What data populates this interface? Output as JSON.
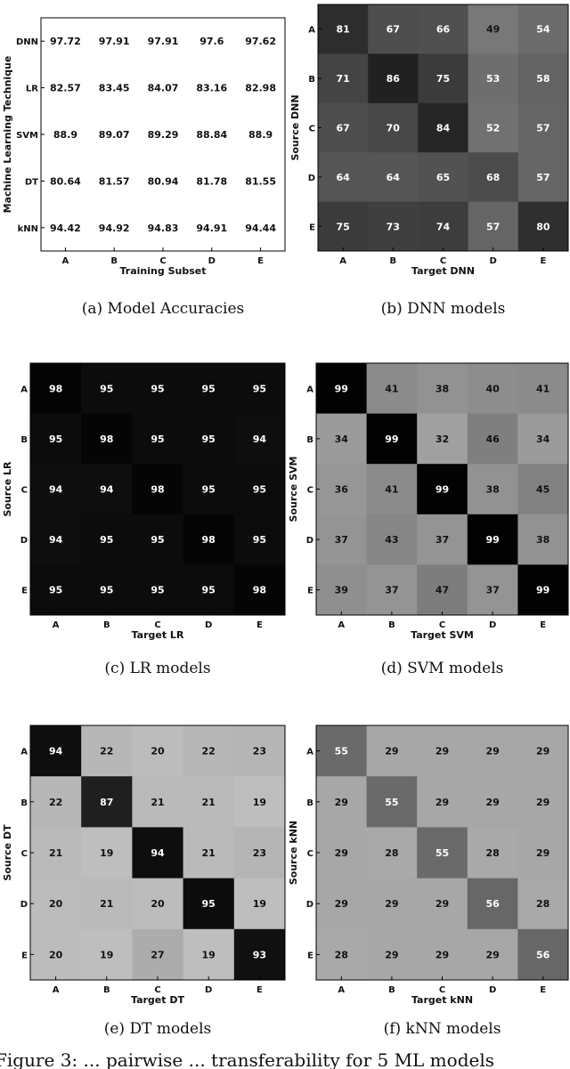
{
  "panels": [
    {
      "id": "a",
      "caption": "(a) Model Accuracies",
      "chart_data": {
        "type": "table",
        "xlabel": "Training Subset",
        "ylabel": "Machine Learning Technique",
        "categories": [
          "A",
          "B",
          "C",
          "D",
          "E"
        ],
        "rows": [
          "DNN",
          "LR",
          "SVM",
          "DT",
          "kNN"
        ],
        "cells": [
          [
            "97.72",
            "97.91",
            "97.91",
            "97.6",
            "97.62"
          ],
          [
            "82.57",
            "83.45",
            "84.07",
            "83.16",
            "82.98"
          ],
          [
            "88.9",
            "89.07",
            "89.29",
            "88.84",
            "88.9"
          ],
          [
            "80.64",
            "81.57",
            "80.94",
            "81.78",
            "81.55"
          ],
          [
            "94.42",
            "94.92",
            "94.83",
            "94.91",
            "94.44"
          ]
        ]
      }
    },
    {
      "id": "b",
      "caption": "(b) DNN models",
      "chart_data": {
        "type": "heatmap",
        "xlabel": "Target DNN",
        "ylabel": "Source DNN",
        "x": [
          "A",
          "B",
          "C",
          "D",
          "E"
        ],
        "y": [
          "A",
          "B",
          "C",
          "D",
          "E"
        ],
        "values": [
          [
            81,
            67,
            66,
            49,
            54
          ],
          [
            71,
            86,
            75,
            53,
            58
          ],
          [
            67,
            70,
            84,
            52,
            57
          ],
          [
            64,
            64,
            65,
            68,
            57
          ],
          [
            75,
            73,
            74,
            57,
            80
          ]
        ],
        "colormap": "grayscale-reversed",
        "vrange": [
          0,
          100
        ]
      }
    },
    {
      "id": "c",
      "caption": "(c) LR models",
      "chart_data": {
        "type": "heatmap",
        "xlabel": "Target LR",
        "ylabel": "Source LR",
        "x": [
          "A",
          "B",
          "C",
          "D",
          "E"
        ],
        "y": [
          "A",
          "B",
          "C",
          "D",
          "E"
        ],
        "values": [
          [
            98,
            95,
            95,
            95,
            95
          ],
          [
            95,
            98,
            95,
            95,
            94
          ],
          [
            94,
            94,
            98,
            95,
            95
          ],
          [
            94,
            95,
            95,
            98,
            95
          ],
          [
            95,
            95,
            95,
            95,
            98
          ]
        ],
        "colormap": "grayscale-reversed",
        "vrange": [
          0,
          100
        ]
      }
    },
    {
      "id": "d",
      "caption": "(d) SVM models",
      "chart_data": {
        "type": "heatmap",
        "xlabel": "Target SVM",
        "ylabel": "Source SVM",
        "x": [
          "A",
          "B",
          "C",
          "D",
          "E"
        ],
        "y": [
          "A",
          "B",
          "C",
          "D",
          "E"
        ],
        "values": [
          [
            99,
            41,
            38,
            40,
            41
          ],
          [
            34,
            99,
            32,
            46,
            34
          ],
          [
            36,
            41,
            99,
            38,
            45
          ],
          [
            37,
            43,
            37,
            99,
            38
          ],
          [
            39,
            37,
            47,
            37,
            99
          ]
        ],
        "colormap": "grayscale-reversed",
        "vrange": [
          0,
          100
        ]
      }
    },
    {
      "id": "e",
      "caption": "(e) DT models",
      "chart_data": {
        "type": "heatmap",
        "xlabel": "Target DT",
        "ylabel": "Source DT",
        "x": [
          "A",
          "B",
          "C",
          "D",
          "E"
        ],
        "y": [
          "A",
          "B",
          "C",
          "D",
          "E"
        ],
        "values": [
          [
            94,
            22,
            20,
            22,
            23
          ],
          [
            22,
            87,
            21,
            21,
            19
          ],
          [
            21,
            19,
            94,
            21,
            23
          ],
          [
            20,
            21,
            20,
            95,
            19
          ],
          [
            20,
            19,
            27,
            19,
            93
          ]
        ],
        "colormap": "grayscale-reversed",
        "vrange": [
          0,
          100
        ]
      }
    },
    {
      "id": "f",
      "caption": "(f) kNN models",
      "chart_data": {
        "type": "heatmap",
        "xlabel": "Target kNN",
        "ylabel": "Source kNN",
        "x": [
          "A",
          "B",
          "C",
          "D",
          "E"
        ],
        "y": [
          "A",
          "B",
          "C",
          "D",
          "E"
        ],
        "values": [
          [
            55,
            29,
            29,
            29,
            29
          ],
          [
            29,
            55,
            29,
            29,
            29
          ],
          [
            29,
            28,
            55,
            28,
            29
          ],
          [
            29,
            29,
            29,
            56,
            28
          ],
          [
            28,
            29,
            29,
            29,
            56
          ]
        ],
        "colormap": "grayscale-reversed",
        "vrange": [
          0,
          100
        ]
      }
    }
  ],
  "footer": {
    "text": "Figure 3: ... pairwise ... transferability for 5 ML models"
  }
}
